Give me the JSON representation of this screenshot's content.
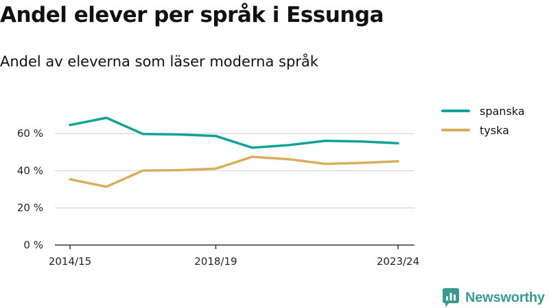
{
  "title": "Andel elever per språk i Essunga",
  "subtitle": "Andel av eleverna som läser moderna språk",
  "brand": {
    "name": "Newsworthy",
    "color": "#3a9a8c"
  },
  "chart_data": {
    "type": "line",
    "title": "Andel elever per språk i Essunga",
    "subtitle": "Andel av eleverna som läser moderna språk",
    "x": [
      "2014/15",
      "2015/16",
      "2016/17",
      "2017/18",
      "2018/19",
      "2019/20",
      "2020/21",
      "2021/22",
      "2022/23",
      "2023/24"
    ],
    "x_tick_labels": [
      "2014/15",
      "2018/19",
      "2023/24"
    ],
    "ylim": [
      0,
      70
    ],
    "y_ticks": [
      0,
      20,
      40,
      60
    ],
    "y_tick_labels": [
      "0 %",
      "20 %",
      "40 %",
      "60 %"
    ],
    "grid": true,
    "legend_position": "top-right",
    "series": [
      {
        "name": "spanska",
        "color": "#0fa398",
        "values": [
          64.6,
          68.5,
          59.8,
          59.5,
          58.7,
          52.4,
          53.8,
          56.1,
          55.7,
          54.8
        ]
      },
      {
        "name": "tyska",
        "color": "#d8ad5c",
        "values": [
          35.4,
          31.4,
          40.1,
          40.3,
          41.1,
          47.5,
          46.2,
          43.7,
          44.2,
          45.1
        ]
      }
    ]
  }
}
